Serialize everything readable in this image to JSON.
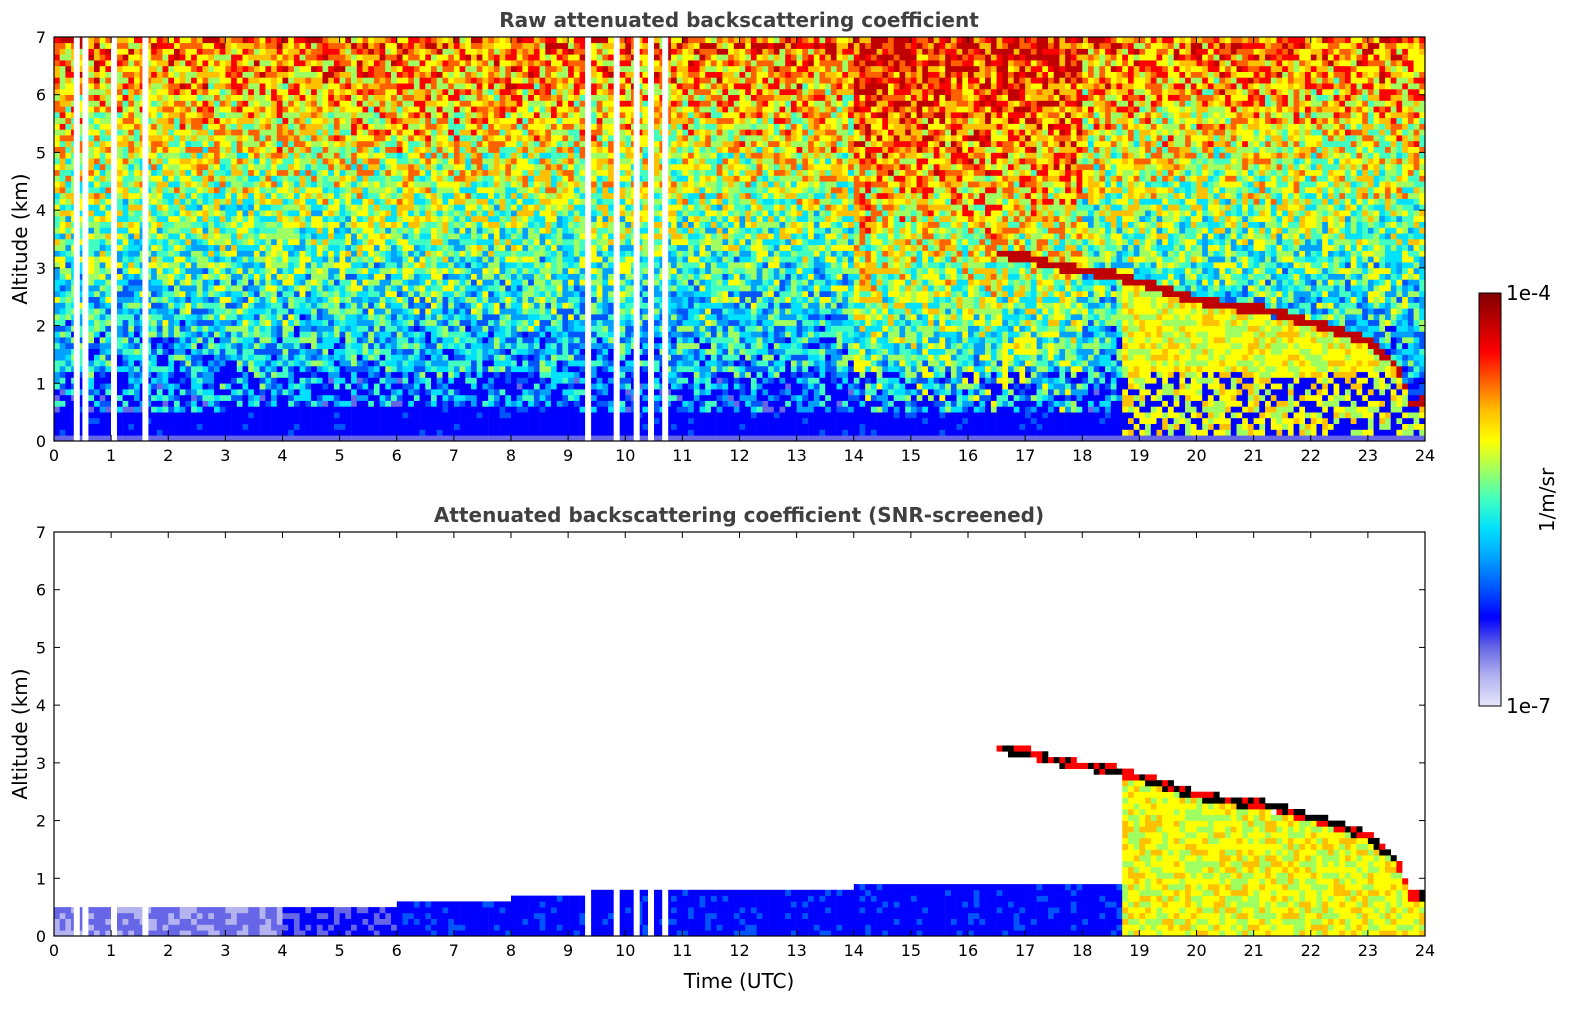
{
  "chart_data": [
    {
      "type": "heatmap",
      "title": "Raw attenuated backscattering coefficient",
      "xlabel": "",
      "ylabel": "Altitude (km)",
      "xlim": [
        0,
        24
      ],
      "ylim": [
        0,
        7
      ],
      "xticks": [
        "0",
        "1",
        "2",
        "3",
        "4",
        "5",
        "6",
        "7",
        "8",
        "9",
        "10",
        "11",
        "12",
        "13",
        "14",
        "15",
        "16",
        "17",
        "18",
        "19",
        "20",
        "21",
        "22",
        "23",
        "24"
      ],
      "yticks": [
        "0",
        "1",
        "2",
        "3",
        "4",
        "5",
        "6",
        "7"
      ],
      "cloud_top_km": [
        {
          "t": 16.5,
          "z": 3.25
        },
        {
          "t": 17.0,
          "z": 3.2
        },
        {
          "t": 17.5,
          "z": 3.05
        },
        {
          "t": 18.0,
          "z": 2.95
        },
        {
          "t": 18.5,
          "z": 2.9
        },
        {
          "t": 19.0,
          "z": 2.75
        },
        {
          "t": 19.5,
          "z": 2.6
        },
        {
          "t": 20.0,
          "z": 2.45
        },
        {
          "t": 20.5,
          "z": 2.35
        },
        {
          "t": 21.0,
          "z": 2.3
        },
        {
          "t": 21.5,
          "z": 2.2
        },
        {
          "t": 22.0,
          "z": 2.05
        },
        {
          "t": 22.5,
          "z": 1.9
        },
        {
          "t": 23.0,
          "z": 1.75
        },
        {
          "t": 23.5,
          "z": 1.3
        },
        {
          "t": 23.75,
          "z": 0.7
        }
      ],
      "gaps_utc": [
        0.4,
        0.55,
        1.05,
        1.6,
        9.35,
        9.85,
        10.2,
        10.45,
        10.7
      ]
    },
    {
      "type": "heatmap",
      "title": "Attenuated backscattering coefficient (SNR-screened)",
      "xlabel": "Time (UTC)",
      "ylabel": "Altitude (km)",
      "xlim": [
        0,
        24
      ],
      "ylim": [
        0,
        7
      ],
      "xticks": [
        "0",
        "1",
        "2",
        "3",
        "4",
        "5",
        "6",
        "7",
        "8",
        "9",
        "10",
        "11",
        "12",
        "13",
        "14",
        "15",
        "16",
        "17",
        "18",
        "19",
        "20",
        "21",
        "22",
        "23",
        "24"
      ],
      "yticks": [
        "0",
        "1",
        "2",
        "3",
        "4",
        "5",
        "6",
        "7"
      ],
      "boundary_layer_top_km": [
        {
          "t": 0,
          "z": 0.55
        },
        {
          "t": 4,
          "z": 0.45
        },
        {
          "t": 6,
          "z": 0.55
        },
        {
          "t": 8,
          "z": 0.65
        },
        {
          "t": 10,
          "z": 0.8
        },
        {
          "t": 11,
          "z": 0.85
        },
        {
          "t": 14,
          "z": 0.85
        },
        {
          "t": 18.7,
          "z": 0.9
        }
      ]
    }
  ],
  "colorbar": {
    "label": "1/m/sr",
    "max_label": "1e-4",
    "min_label": "1e-7",
    "scale": "log",
    "colormap": [
      "#e6e6fa",
      "#b3b3f0",
      "#6666e6",
      "#0000ff",
      "#0055ff",
      "#00a0ff",
      "#00e0ff",
      "#40ffc0",
      "#a0ff60",
      "#ffff00",
      "#ffc000",
      "#ff6000",
      "#ff0000",
      "#c00000",
      "#800000"
    ]
  }
}
